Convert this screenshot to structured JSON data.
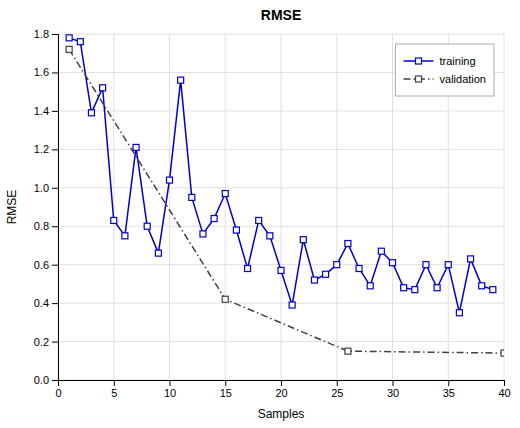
{
  "chart_data": {
    "type": "line",
    "title": "RMSE",
    "x_label": "Samples",
    "y_label": "RMSE",
    "series": [
      {
        "name": "training",
        "color": "#0000cd",
        "marker": "square",
        "line_style": "solid",
        "x": [
          1,
          2,
          3,
          4,
          5,
          6,
          7,
          8,
          9,
          10,
          11,
          12,
          13,
          14,
          15,
          16,
          17,
          18,
          19,
          20,
          21,
          22,
          23,
          24,
          25,
          26,
          27,
          28,
          29,
          30,
          31,
          32,
          33,
          34,
          35,
          36,
          37,
          38,
          39
        ],
        "values": [
          1.78,
          1.76,
          1.39,
          1.52,
          0.83,
          0.75,
          1.21,
          0.8,
          0.66,
          1.04,
          1.56,
          0.95,
          0.76,
          0.84,
          0.97,
          0.78,
          0.58,
          0.83,
          0.75,
          0.57,
          0.39,
          0.73,
          0.52,
          0.55,
          0.6,
          0.71,
          0.58,
          0.49,
          0.67,
          0.61,
          0.48,
          0.47,
          0.6,
          0.48,
          0.6,
          0.35,
          0.63,
          0.49,
          0.47
        ]
      },
      {
        "name": "validation",
        "color": "#404040",
        "marker": "square",
        "line_style": "dashdot",
        "x": [
          1,
          15,
          26,
          40
        ],
        "values": [
          1.72,
          0.42,
          0.15,
          0.14
        ]
      }
    ],
    "xlim": [
      0,
      40
    ],
    "ylim": [
      0,
      1.8
    ],
    "xticks": [
      0,
      5,
      10,
      15,
      20,
      25,
      30,
      35,
      40
    ],
    "yticks": [
      {
        "value": 0,
        "label": "0.0"
      },
      0.2,
      0.4,
      0.6,
      0.8,
      {
        "value": 1.0,
        "label": "1.0"
      },
      1.2,
      1.4,
      1.6,
      1.8
    ],
    "grid": true,
    "legend": "upper right"
  }
}
